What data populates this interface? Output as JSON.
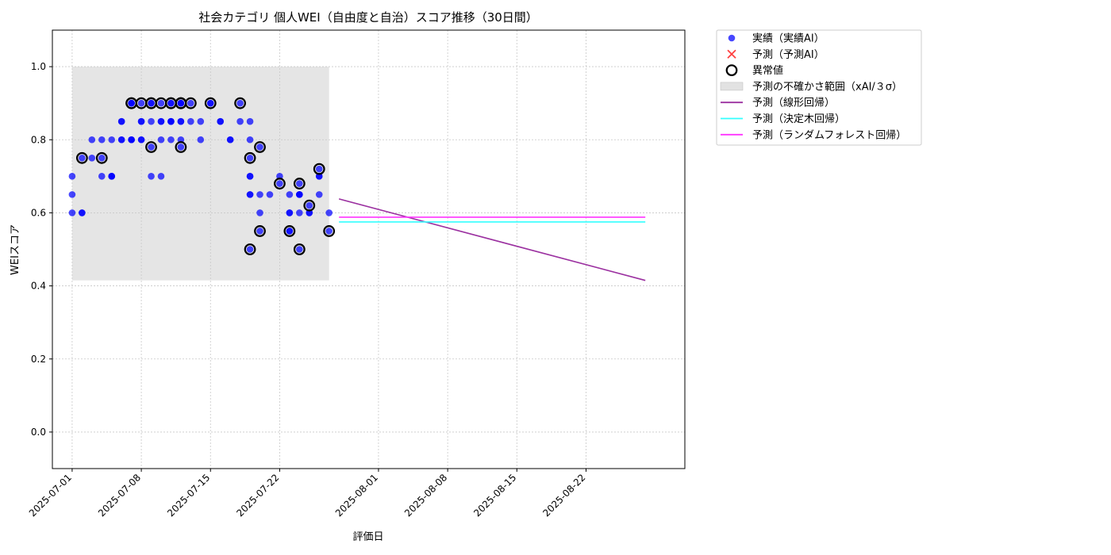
{
  "chart_data": {
    "type": "scatter",
    "title": "社会カテゴリ 個人WEI（自由度と自治）スコア推移（30日間）",
    "xlabel": "評価日",
    "ylabel": "WEIスコア",
    "xlim": [
      "2025-06-29",
      "2025-09-01"
    ],
    "ylim": [
      -0.1,
      1.1
    ],
    "x_ticks": [
      "2025-07-01",
      "2025-07-08",
      "2025-07-15",
      "2025-07-22",
      "2025-08-01",
      "2025-08-08",
      "2025-08-15",
      "2025-08-22"
    ],
    "y_ticks": [
      0.0,
      0.2,
      0.4,
      0.6,
      0.8,
      1.0
    ],
    "y_tick_labels": [
      "0.0",
      "0.2",
      "0.4",
      "0.6",
      "0.8",
      "1.0"
    ],
    "grid": true,
    "legend_position": "outside-top-right",
    "legend": [
      {
        "label": "実績（実績AI）",
        "kind": "dot",
        "color": "#0000ff"
      },
      {
        "label": "予測（予測AI）",
        "kind": "cross",
        "color": "#ff0000"
      },
      {
        "label": "異常値",
        "kind": "ring",
        "color": "#000000"
      },
      {
        "label": "予測の不確かさ範囲（xAI/３σ）",
        "kind": "band",
        "color": "#bfbfbf"
      },
      {
        "label": "予測（線形回帰）",
        "kind": "line",
        "color": "#9b30a0"
      },
      {
        "label": "予測（決定木回帰）",
        "kind": "line",
        "color": "#33ffff"
      },
      {
        "label": "予測（ランダムフォレスト回帰）",
        "kind": "line",
        "color": "#ff33ff"
      }
    ],
    "uncertainty_band": {
      "x_start": "2025-07-01",
      "x_end": "2025-07-27",
      "y_low": 0.415,
      "y_high": 1.0,
      "color": "#bfbfbf"
    },
    "actual": {
      "name": "実績（実績AI）",
      "color": "#0000ff",
      "points": [
        [
          "2025-07-01",
          0.65
        ],
        [
          "2025-07-01",
          0.6
        ],
        [
          "2025-07-01",
          0.7
        ],
        [
          "2025-07-02",
          0.75
        ],
        [
          "2025-07-02",
          0.6
        ],
        [
          "2025-07-02",
          0.6
        ],
        [
          "2025-07-03",
          0.8
        ],
        [
          "2025-07-03",
          0.75
        ],
        [
          "2025-07-04",
          0.75
        ],
        [
          "2025-07-04",
          0.7
        ],
        [
          "2025-07-04",
          0.8
        ],
        [
          "2025-07-05",
          0.7
        ],
        [
          "2025-07-05",
          0.7
        ],
        [
          "2025-07-05",
          0.8
        ],
        [
          "2025-07-05",
          0.7
        ],
        [
          "2025-07-06",
          0.85
        ],
        [
          "2025-07-06",
          0.8
        ],
        [
          "2025-07-06",
          0.8
        ],
        [
          "2025-07-06",
          0.85
        ],
        [
          "2025-07-07",
          0.8
        ],
        [
          "2025-07-07",
          0.9
        ],
        [
          "2025-07-07",
          0.8
        ],
        [
          "2025-07-07",
          0.9
        ],
        [
          "2025-07-07",
          0.9
        ],
        [
          "2025-07-07",
          0.8
        ],
        [
          "2025-07-08",
          0.8
        ],
        [
          "2025-07-08",
          0.85
        ],
        [
          "2025-07-08",
          0.9
        ],
        [
          "2025-07-08",
          0.85
        ],
        [
          "2025-07-08",
          0.8
        ],
        [
          "2025-07-09",
          0.9
        ],
        [
          "2025-07-09",
          0.78
        ],
        [
          "2025-07-09",
          0.85
        ],
        [
          "2025-07-09",
          0.7
        ],
        [
          "2025-07-09",
          0.9
        ],
        [
          "2025-07-10",
          0.85
        ],
        [
          "2025-07-10",
          0.9
        ],
        [
          "2025-07-10",
          0.8
        ],
        [
          "2025-07-10",
          0.85
        ],
        [
          "2025-07-10",
          0.7
        ],
        [
          "2025-07-11",
          0.85
        ],
        [
          "2025-07-11",
          0.9
        ],
        [
          "2025-07-11",
          0.9
        ],
        [
          "2025-07-11",
          0.85
        ],
        [
          "2025-07-11",
          0.85
        ],
        [
          "2025-07-11",
          0.8
        ],
        [
          "2025-07-12",
          0.9
        ],
        [
          "2025-07-12",
          0.78
        ],
        [
          "2025-07-12",
          0.8
        ],
        [
          "2025-07-12",
          0.85
        ],
        [
          "2025-07-12",
          0.9
        ],
        [
          "2025-07-12",
          0.9
        ],
        [
          "2025-07-12",
          0.85
        ],
        [
          "2025-07-13",
          0.9
        ],
        [
          "2025-07-13",
          0.85
        ],
        [
          "2025-07-14",
          0.85
        ],
        [
          "2025-07-14",
          0.8
        ],
        [
          "2025-07-15",
          0.9
        ],
        [
          "2025-07-15",
          0.9
        ],
        [
          "2025-07-16",
          0.85
        ],
        [
          "2025-07-16",
          0.85
        ],
        [
          "2025-07-17",
          0.8
        ],
        [
          "2025-07-17",
          0.8
        ],
        [
          "2025-07-18",
          0.9
        ],
        [
          "2025-07-18",
          0.85
        ],
        [
          "2025-07-19",
          0.85
        ],
        [
          "2025-07-19",
          0.75
        ],
        [
          "2025-07-19",
          0.65
        ],
        [
          "2025-07-19",
          0.7
        ],
        [
          "2025-07-19",
          0.5
        ],
        [
          "2025-07-19",
          0.8
        ],
        [
          "2025-07-19",
          0.65
        ],
        [
          "2025-07-19",
          0.7
        ],
        [
          "2025-07-20",
          0.78
        ],
        [
          "2025-07-20",
          0.6
        ],
        [
          "2025-07-20",
          0.55
        ],
        [
          "2025-07-20",
          0.65
        ],
        [
          "2025-07-21",
          0.65
        ],
        [
          "2025-07-22",
          0.68
        ],
        [
          "2025-07-22",
          0.7
        ],
        [
          "2025-07-23",
          0.6
        ],
        [
          "2025-07-23",
          0.55
        ],
        [
          "2025-07-23",
          0.65
        ],
        [
          "2025-07-23",
          0.55
        ],
        [
          "2025-07-23",
          0.6
        ],
        [
          "2025-07-24",
          0.65
        ],
        [
          "2025-07-24",
          0.68
        ],
        [
          "2025-07-24",
          0.6
        ],
        [
          "2025-07-24",
          0.65
        ],
        [
          "2025-07-24",
          0.5
        ],
        [
          "2025-07-24",
          0.65
        ],
        [
          "2025-07-25",
          0.6
        ],
        [
          "2025-07-25",
          0.62
        ],
        [
          "2025-07-25",
          0.6
        ],
        [
          "2025-07-26",
          0.7
        ],
        [
          "2025-07-26",
          0.72
        ],
        [
          "2025-07-26",
          0.7
        ],
        [
          "2025-07-26",
          0.65
        ],
        [
          "2025-07-27",
          0.6
        ],
        [
          "2025-07-27",
          0.55
        ]
      ]
    },
    "anomalies": {
      "name": "異常値",
      "points": [
        [
          "2025-07-02",
          0.75
        ],
        [
          "2025-07-04",
          0.75
        ],
        [
          "2025-07-07",
          0.9
        ],
        [
          "2025-07-07",
          0.9
        ],
        [
          "2025-07-08",
          0.9
        ],
        [
          "2025-07-09",
          0.78
        ],
        [
          "2025-07-09",
          0.9
        ],
        [
          "2025-07-09",
          0.9
        ],
        [
          "2025-07-10",
          0.9
        ],
        [
          "2025-07-11",
          0.9
        ],
        [
          "2025-07-11",
          0.9
        ],
        [
          "2025-07-12",
          0.9
        ],
        [
          "2025-07-12",
          0.78
        ],
        [
          "2025-07-12",
          0.9
        ],
        [
          "2025-07-12",
          0.9
        ],
        [
          "2025-07-13",
          0.9
        ],
        [
          "2025-07-15",
          0.9
        ],
        [
          "2025-07-18",
          0.9
        ],
        [
          "2025-07-19",
          0.75
        ],
        [
          "2025-07-19",
          0.5
        ],
        [
          "2025-07-20",
          0.78
        ],
        [
          "2025-07-20",
          0.55
        ],
        [
          "2025-07-22",
          0.68
        ],
        [
          "2025-07-23",
          0.55
        ],
        [
          "2025-07-24",
          0.68
        ],
        [
          "2025-07-24",
          0.5
        ],
        [
          "2025-07-25",
          0.62
        ],
        [
          "2025-07-26",
          0.72
        ],
        [
          "2025-07-27",
          0.55
        ]
      ]
    },
    "forecast_lines": [
      {
        "name": "予測（線形回帰）",
        "color": "#9b30a0",
        "x": [
          "2025-07-28",
          "2025-08-28"
        ],
        "y": [
          0.638,
          0.415
        ]
      },
      {
        "name": "予測（決定木回帰）",
        "color": "#33ffff",
        "x": [
          "2025-07-28",
          "2025-08-28"
        ],
        "y": [
          0.575,
          0.575
        ]
      },
      {
        "name": "予測（ランダムフォレスト回帰）",
        "color": "#ff33ff",
        "x": [
          "2025-07-28",
          "2025-08-28"
        ],
        "y": [
          0.588,
          0.588
        ]
      }
    ]
  }
}
